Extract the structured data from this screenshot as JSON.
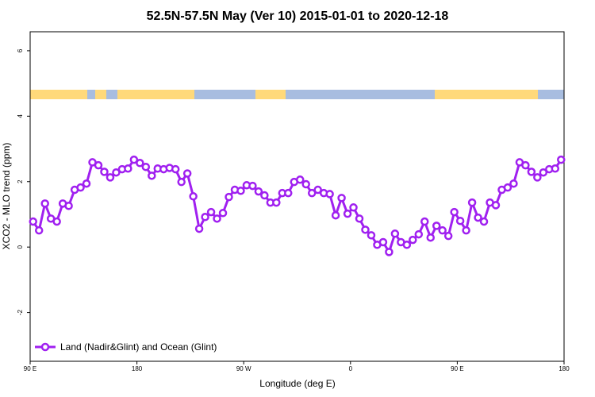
{
  "chart_data": {
    "type": "line",
    "title": "52.5N-57.5N May (Ver 10)   2015-01-01 to 2020-12-18",
    "x_label": "Longitude (deg E)",
    "y_label": "XCO2 - MLO trend (ppm)",
    "xlim": [
      90,
      540
    ],
    "ylim": [
      -3.49,
      6.58
    ],
    "xticks": [
      {
        "value": 90,
        "label": "90 E"
      },
      {
        "value": 180,
        "label": "180"
      },
      {
        "value": 270,
        "label": "90 W"
      },
      {
        "value": 360,
        "label": "0"
      },
      {
        "value": 450,
        "label": "90 E"
      },
      {
        "value": 540,
        "label": "180"
      }
    ],
    "yticks": [
      -2,
      0,
      2,
      4,
      6
    ],
    "legend": "bottom-left",
    "x": [
      92.5,
      97.5,
      102.5,
      107.5,
      112.5,
      117.5,
      122.5,
      127.5,
      132.5,
      137.5,
      142.5,
      147.5,
      152.5,
      157.5,
      162.5,
      167.5,
      172.5,
      177.5,
      182.5,
      187.5,
      192.5,
      197.5,
      202.5,
      207.5,
      212.5,
      217.5,
      222.5,
      227.5,
      232.5,
      237.5,
      242.5,
      247.5,
      252.5,
      257.5,
      262.5,
      267.5,
      272.5,
      277.5,
      282.5,
      287.5,
      292.5,
      297.5,
      302.5,
      307.5,
      312.5,
      317.5,
      322.5,
      327.5,
      332.5,
      337.5,
      342.5,
      347.5,
      352.5,
      357.5,
      362.5,
      367.5,
      372.5,
      377.5,
      382.5,
      387.5,
      392.5,
      397.5,
      402.5,
      407.5,
      412.5,
      417.5,
      422.5,
      427.5,
      432.5,
      437.5,
      442.5,
      447.5,
      452.5,
      457.5,
      462.5,
      467.5,
      472.5,
      477.5,
      482.5,
      487.5,
      492.5,
      497.5,
      502.5,
      507.5,
      512.5,
      517.5,
      522.5,
      527.5,
      532.5,
      537.5
    ],
    "series": [
      {
        "name": "Land (Nadir&Glint) and Ocean (Glint)",
        "color": "#a020f0",
        "values": [
          0.78,
          0.51,
          1.33,
          0.87,
          0.78,
          1.33,
          1.26,
          1.75,
          1.82,
          1.94,
          2.59,
          2.5,
          2.3,
          2.13,
          2.28,
          2.38,
          2.4,
          2.67,
          2.57,
          2.45,
          2.18,
          2.4,
          2.38,
          2.42,
          2.38,
          1.99,
          2.25,
          1.55,
          0.56,
          0.92,
          1.07,
          0.87,
          1.04,
          1.53,
          1.75,
          1.72,
          1.89,
          1.87,
          1.7,
          1.58,
          1.36,
          1.36,
          1.65,
          1.65,
          1.99,
          2.06,
          1.92,
          1.65,
          1.75,
          1.65,
          1.62,
          0.97,
          1.5,
          1.02,
          1.21,
          0.87,
          0.53,
          0.36,
          0.07,
          0.15,
          -0.15,
          0.41,
          0.15,
          0.07,
          0.22,
          0.39,
          0.78,
          0.29,
          0.65,
          0.51,
          0.34,
          1.07,
          0.8,
          0.51,
          1.36,
          0.9,
          0.78,
          1.36,
          1.28,
          1.75,
          1.82,
          1.94,
          2.59,
          2.5,
          2.3,
          2.13,
          2.28,
          2.38,
          2.4,
          2.67
        ]
      }
    ]
  }
}
